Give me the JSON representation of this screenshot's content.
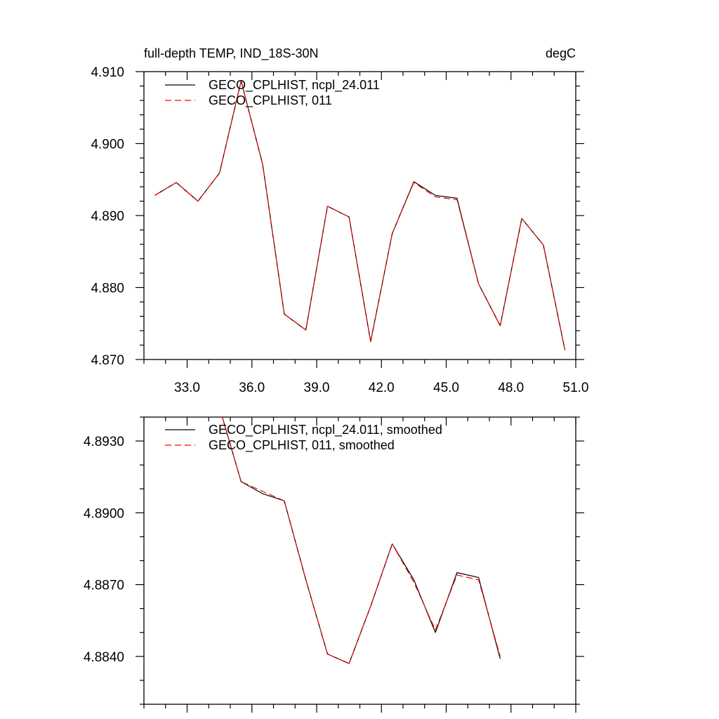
{
  "chart_data": [
    {
      "type": "line",
      "title_left": "full-depth TEMP, IND_18S-30N",
      "title_right": "degC",
      "xlabel": "",
      "ylabel": "",
      "xlim": [
        31.0,
        51.0
      ],
      "ylim": [
        4.87,
        4.91
      ],
      "grid": false,
      "legend_position": "top-left",
      "x_ticks": [
        33.0,
        36.0,
        39.0,
        42.0,
        45.0,
        48.0,
        51.0
      ],
      "x_tick_labels": [
        "33.0",
        "36.0",
        "39.0",
        "42.0",
        "45.0",
        "48.0",
        "51.0"
      ],
      "y_ticks": [
        4.87,
        4.88,
        4.89,
        4.9,
        4.91
      ],
      "y_tick_labels": [
        "4.870",
        "4.880",
        "4.890",
        "4.900",
        "4.910"
      ],
      "x": [
        31.5,
        32.5,
        33.5,
        34.5,
        35.5,
        36.5,
        37.5,
        38.5,
        39.5,
        40.5,
        41.5,
        42.5,
        43.5,
        44.5,
        45.5,
        46.5,
        47.5,
        48.5,
        49.5,
        50.5
      ],
      "series": [
        {
          "name": "GECO_CPLHIST, ncpl_24.011",
          "color": "#000000",
          "dashed": false,
          "values": [
            4.8928,
            4.8946,
            4.892,
            4.8959,
            4.9087,
            4.8971,
            4.8763,
            4.8741,
            4.8913,
            4.8898,
            4.8725,
            4.8875,
            4.8947,
            4.8928,
            4.8924,
            4.8805,
            4.8747,
            4.8896,
            4.8859,
            4.8713
          ]
        },
        {
          "name": "GECO_CPLHIST, 011",
          "color": "#ff0000",
          "dashed": true,
          "values": [
            4.8928,
            4.8946,
            4.892,
            4.8959,
            4.9087,
            4.8971,
            4.8763,
            4.8741,
            4.8913,
            4.8898,
            4.8725,
            4.8875,
            4.8946,
            4.8926,
            4.8922,
            4.8805,
            4.8747,
            4.8896,
            4.8859,
            4.8713
          ]
        }
      ]
    },
    {
      "type": "line",
      "title_left": "",
      "title_right": "",
      "xlabel": "",
      "ylabel": "",
      "xlim": [
        31.0,
        51.0
      ],
      "ylim": [
        4.882,
        4.894
      ],
      "grid": false,
      "legend_position": "top-left",
      "x_ticks": [
        33.0,
        36.0,
        39.0,
        42.0,
        45.0,
        48.0,
        51.0
      ],
      "x_tick_labels": [],
      "y_ticks": [
        4.884,
        4.887,
        4.89,
        4.893
      ],
      "y_tick_labels": [
        "4.8840",
        "4.8870",
        "4.8900",
        "4.8930"
      ],
      "x": [
        34.5,
        35.5,
        36.5,
        37.5,
        38.5,
        39.5,
        40.5,
        41.5,
        42.5,
        43.5,
        44.5,
        45.5,
        46.5,
        47.5
      ],
      "series": [
        {
          "name": "GECO_CPLHIST, ncpl_24.011, smoothed",
          "color": "#000000",
          "dashed": false,
          "values": [
            4.8944,
            4.8913,
            4.8908,
            4.8905,
            4.8872,
            4.8841,
            4.8837,
            4.8861,
            4.8887,
            4.8872,
            4.885,
            4.8875,
            4.8873,
            4.8839
          ]
        },
        {
          "name": "GECO_CPLHIST, 011, smoothed",
          "color": "#ff0000",
          "dashed": true,
          "values": [
            4.8944,
            4.8913,
            4.8909,
            4.8905,
            4.8872,
            4.8841,
            4.8837,
            4.8861,
            4.8887,
            4.8871,
            4.8851,
            4.8874,
            4.8872,
            4.884
          ]
        }
      ]
    }
  ]
}
